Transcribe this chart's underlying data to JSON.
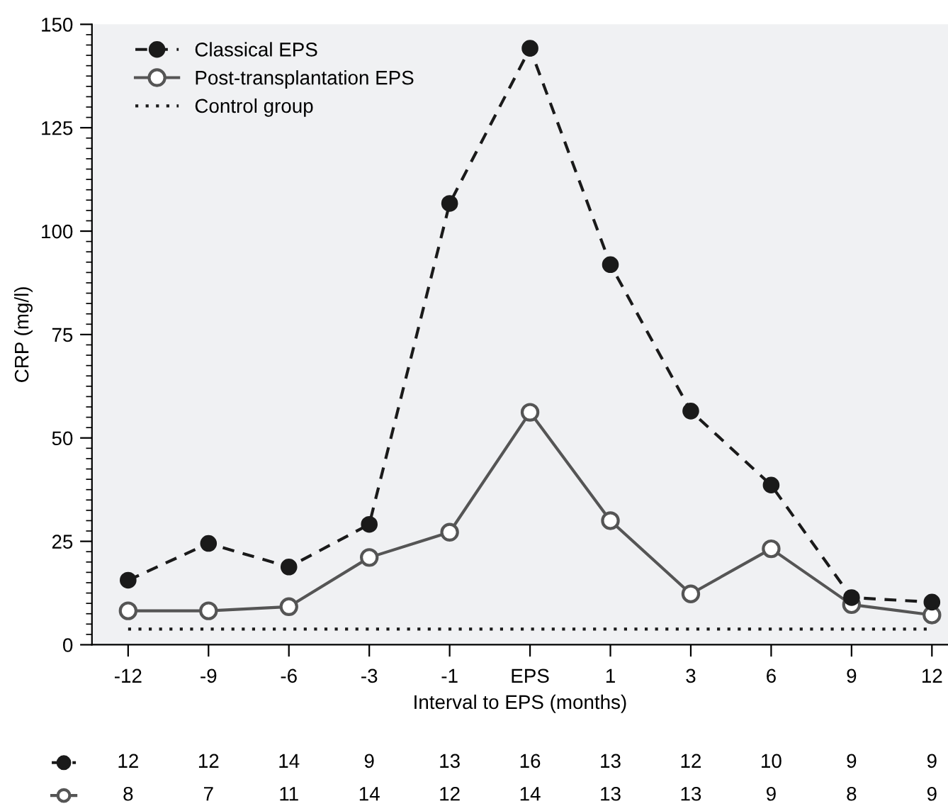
{
  "chart_data": {
    "type": "line",
    "xlabel": "Interval to EPS (months)",
    "ylabel": "CRP (mg/l)",
    "categories": [
      "-12",
      "-9",
      "-6",
      "-3",
      "-1",
      "EPS",
      "1",
      "3",
      "6",
      "9",
      "12"
    ],
    "series": [
      {
        "name": "Classical EPS",
        "color": "#1a1a1a",
        "marker": "circle",
        "line_style": "dashed",
        "values": [
          15.6,
          24.5,
          18.8,
          29.1,
          106.7,
          144.2,
          91.9,
          56.5,
          38.6,
          11.4,
          10.3
        ]
      },
      {
        "name": "Post-transplantation EPS",
        "color": "#555555",
        "marker": "circle",
        "line_style": "solid",
        "values": [
          8.2,
          8.2,
          9.2,
          21.1,
          27.2,
          56.2,
          30.0,
          12.3,
          23.2,
          9.7,
          7.2
        ]
      },
      {
        "name": "Control group",
        "color": "#1a1a1a",
        "marker": "none",
        "line_style": "dotted",
        "values": [
          3.8,
          3.8,
          3.8,
          3.8,
          3.8,
          3.8,
          3.8,
          3.8,
          3.8,
          3.8,
          3.8
        ]
      }
    ],
    "ylim": [
      0,
      150
    ],
    "yticks": [
      0,
      25,
      50,
      75,
      100,
      125,
      150
    ],
    "grid": false,
    "legend": "top left",
    "annotations": [
      "12",
      "12",
      "14",
      "9",
      "13",
      "16",
      "13",
      "12",
      "10",
      "9",
      "9",
      "8",
      "7",
      "11",
      "14",
      "12",
      "14",
      "13",
      "13",
      "9",
      "8",
      "9"
    ]
  }
}
